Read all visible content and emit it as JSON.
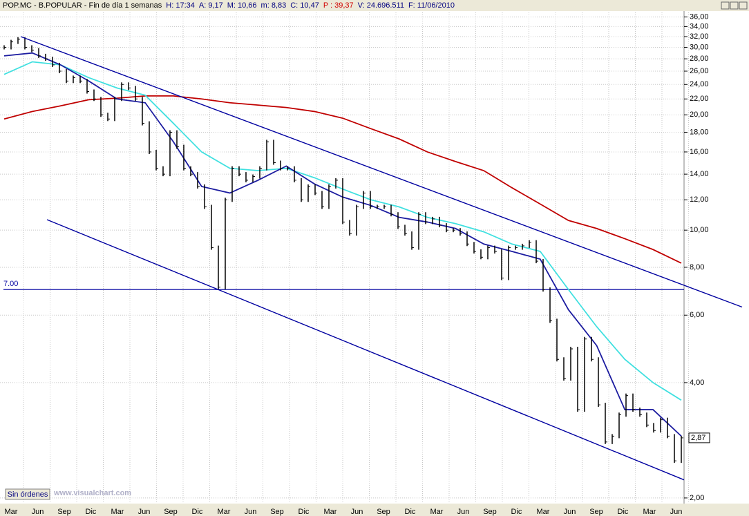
{
  "chart_data": {
    "type": "bar",
    "header": [
      {
        "text": "POP.MC - B.POPULAR - Fin de día 1 semanas",
        "color": "#000000"
      },
      {
        "text": "H: 17:34",
        "color": "#000080"
      },
      {
        "text": "A: 9,17",
        "color": "#000080"
      },
      {
        "text": "M: 10,66",
        "color": "#000080"
      },
      {
        "text": "m: 8,83",
        "color": "#000080"
      },
      {
        "text": "C: 10,47",
        "color": "#000080"
      },
      {
        "text": "P : 39,37",
        "color": "#d00000"
      },
      {
        "text": "V: 24.696.511",
        "color": "#000080"
      },
      {
        "text": "F: 11/06/2010",
        "color": "#000080"
      }
    ],
    "log_scale": true,
    "grid": true,
    "ylim": [
      1.95,
      37
    ],
    "yticks": [
      {
        "value": 36,
        "label": "36,00"
      },
      {
        "value": 34,
        "label": "34,00"
      },
      {
        "value": 32,
        "label": "32,00"
      },
      {
        "value": 30,
        "label": "30,00"
      },
      {
        "value": 28,
        "label": "28,00"
      },
      {
        "value": 26,
        "label": "26,00"
      },
      {
        "value": 24,
        "label": "24,00"
      },
      {
        "value": 22,
        "label": "22,00"
      },
      {
        "value": 20,
        "label": "20,00"
      },
      {
        "value": 18,
        "label": "18,00"
      },
      {
        "value": 16,
        "label": "16,00"
      },
      {
        "value": 14,
        "label": "14,00"
      },
      {
        "value": 12,
        "label": "12,00"
      },
      {
        "value": 10,
        "label": "10,00"
      },
      {
        "value": 8,
        "label": "8,00"
      },
      {
        "value": 6,
        "label": "6,00"
      },
      {
        "value": 4,
        "label": "4,00"
      },
      {
        "value": 2,
        "label": "2,00"
      }
    ],
    "categories": [
      "Mar",
      "Jun",
      "Sep",
      "Dic",
      "Mar",
      "Jun",
      "Sep",
      "Dic",
      "Mar",
      "Jun",
      "Sep",
      "Dic",
      "Mar",
      "Jun",
      "Sep",
      "Dic",
      "Mar",
      "Jun",
      "Sep",
      "Dic",
      "Mar",
      "Jun",
      "Sep",
      "Dic",
      "Mar",
      "Jun"
    ],
    "price": {
      "color": "#000000",
      "values": [
        30,
        31,
        31.5,
        30,
        29.5,
        28.5,
        28,
        27,
        26,
        24.5,
        25,
        24.5,
        23,
        22,
        20,
        19.5,
        22,
        24,
        23.5,
        22,
        19,
        16,
        14.5,
        14,
        18,
        16.5,
        14.5,
        14,
        13,
        11.5,
        9,
        7.1,
        12,
        14.5,
        14,
        13.5,
        13.8,
        14.5,
        17,
        15,
        14.5,
        14.5,
        13.5,
        12,
        13,
        12.5,
        11.5,
        13,
        13.5,
        10.5,
        9.8,
        11.5,
        12.5,
        11.5,
        11.5,
        11.5,
        11,
        10.2,
        9.8,
        9,
        11,
        10.5,
        10.7,
        10.3,
        10,
        10,
        9.8,
        9.2,
        8.8,
        8.5,
        9,
        8.8,
        7.5,
        9,
        9,
        9.1,
        9.3,
        8.3,
        7,
        5.8,
        4.6,
        4.1,
        4.9,
        3.4,
        5.2,
        4.6,
        3.5,
        2.8,
        2.9,
        3.3,
        3.7,
        3.4,
        3.3,
        3.1,
        3.0,
        3.2,
        2.9,
        2.5,
        2.87
      ]
    },
    "averages": [
      {
        "color": "#c00000",
        "values": [
          19.5,
          20.4,
          21.1,
          21.9,
          22.1,
          22.4,
          22.4,
          22,
          21.5,
          21.2,
          20.9,
          20.4,
          19.6,
          18.4,
          17.3,
          16,
          15.1,
          14.3,
          12.9,
          11.7,
          10.6,
          10.1,
          9.5,
          8.9,
          8.2
        ]
      },
      {
        "color": "#40e0e0",
        "values": [
          25.5,
          27.5,
          27,
          25,
          23.5,
          22.5,
          19,
          16,
          14.5,
          14.3,
          14.5,
          13.7,
          12.8,
          12,
          11.5,
          10.8,
          10.4,
          9.9,
          9.2,
          8.8,
          7,
          5.6,
          4.6,
          4,
          3.6
        ]
      },
      {
        "color": "#1c1ca0",
        "values": [
          28.5,
          29,
          27,
          24.5,
          22,
          21.5,
          17,
          13,
          12.5,
          13.5,
          14.7,
          13.2,
          12.2,
          11.6,
          10.8,
          10.5,
          10.1,
          9.2,
          8.8,
          8.4,
          6.2,
          5,
          3.4,
          3.4,
          2.9
        ]
      }
    ],
    "trendlines": [
      {
        "color": "#0000a0",
        "values": [
          32,
          6.3
        ]
      },
      {
        "color": "#0000a0",
        "values": [
          10.65,
          2.23
        ]
      }
    ],
    "hline": {
      "color": "#0000a0",
      "value": 7,
      "label": "7.00"
    },
    "last_label": {
      "value": 2.87,
      "label": "2,87"
    },
    "status": "Sin órdenes",
    "watermark": "www.visualchart.com"
  }
}
